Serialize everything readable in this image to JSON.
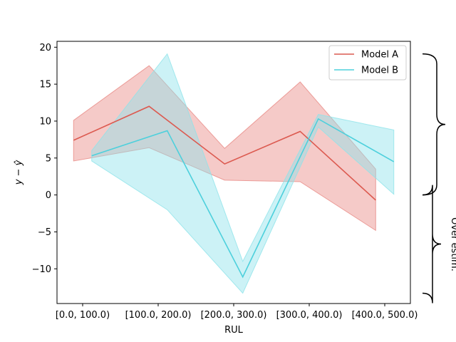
{
  "chart_data": {
    "type": "line",
    "xlabel": "RUL",
    "ylabel": "y − ŷ",
    "categories": [
      "[0.0, 100.0)",
      "[100.0, 200.0)",
      "[200.0, 300.0)",
      "[300.0, 400.0)",
      "[400.0, 500.0)"
    ],
    "ylim": [
      -14.7,
      20.8
    ],
    "yticks": [
      -10,
      -5,
      0,
      5,
      10,
      15,
      20
    ],
    "grid": false,
    "legend_position": "top-right",
    "series": [
      {
        "name": "Model A",
        "color": "#dc5a50",
        "band_color": "#e98a84",
        "x": [
          -0.12,
          0.88,
          1.88,
          2.88,
          3.88
        ],
        "y": [
          7.4,
          12.0,
          4.2,
          8.6,
          -0.7
        ],
        "y_low": [
          4.6,
          6.4,
          2.0,
          1.8,
          -4.8
        ],
        "y_high": [
          10.1,
          17.5,
          6.3,
          15.3,
          3.5
        ]
      },
      {
        "name": "Model B",
        "color": "#4dd0dc",
        "band_color": "#8ee3ea",
        "x": [
          0.12,
          1.12,
          2.12,
          3.12,
          4.12
        ],
        "y": [
          5.3,
          8.7,
          -11.1,
          10.3,
          4.5
        ],
        "y_low": [
          4.6,
          -2.0,
          -13.3,
          9.2,
          0.1
        ],
        "y_high": [
          6.0,
          19.1,
          -9.0,
          10.9,
          8.8
        ]
      }
    ],
    "annotations": [
      {
        "kind": "curly-brace",
        "y_from": 0,
        "y_to": 19.1
      },
      {
        "kind": "curly-brace",
        "y_from": -13.3,
        "y_to": 0,
        "label": "Over estim."
      }
    ]
  }
}
